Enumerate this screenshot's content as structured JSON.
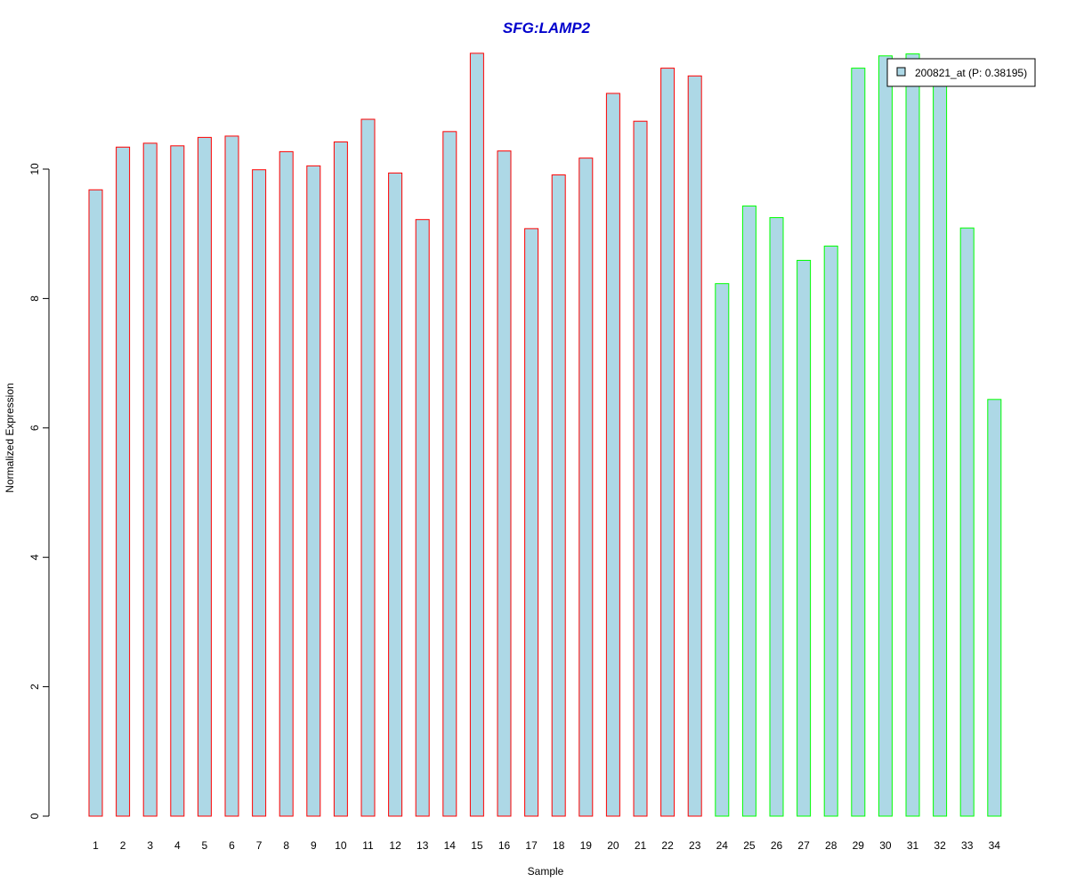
{
  "chart_data": {
    "type": "bar",
    "title": "SFG:LAMP2",
    "xlabel": "Sample",
    "ylabel": "Normalized Expression",
    "categories": [
      "1",
      "2",
      "3",
      "4",
      "5",
      "6",
      "7",
      "8",
      "9",
      "10",
      "11",
      "12",
      "13",
      "14",
      "15",
      "16",
      "17",
      "18",
      "19",
      "20",
      "21",
      "22",
      "23",
      "24",
      "25",
      "26",
      "27",
      "28",
      "29",
      "30",
      "31",
      "32",
      "33",
      "34"
    ],
    "series": [
      {
        "name": "200821_at (P: 0.38195)",
        "values": [
          9.68,
          10.34,
          10.4,
          10.36,
          10.49,
          10.51,
          9.99,
          10.27,
          10.05,
          10.42,
          10.77,
          9.94,
          9.22,
          10.58,
          11.79,
          10.28,
          9.08,
          9.91,
          10.17,
          11.17,
          10.74,
          11.56,
          11.44,
          8.23,
          9.43,
          9.25,
          8.59,
          8.81,
          11.56,
          11.75,
          11.78,
          11.45,
          9.09,
          6.44
        ]
      }
    ],
    "bar_fill": "#add8e6",
    "group_border_colors": [
      "#ff0000",
      "#ff0000",
      "#ff0000",
      "#ff0000",
      "#ff0000",
      "#ff0000",
      "#ff0000",
      "#ff0000",
      "#ff0000",
      "#ff0000",
      "#ff0000",
      "#ff0000",
      "#ff0000",
      "#ff0000",
      "#ff0000",
      "#ff0000",
      "#ff0000",
      "#ff0000",
      "#ff0000",
      "#ff0000",
      "#ff0000",
      "#ff0000",
      "#ff0000",
      "#00ff00",
      "#00ff00",
      "#00ff00",
      "#00ff00",
      "#00ff00",
      "#00ff00",
      "#00ff00",
      "#00ff00",
      "#00ff00",
      "#00ff00",
      "#00ff00"
    ],
    "title_color": "#0000cc",
    "yticks": [
      0,
      2,
      4,
      6,
      8,
      10
    ],
    "ylim": [
      0,
      12
    ],
    "grid": false,
    "legend_position": "top-right"
  }
}
